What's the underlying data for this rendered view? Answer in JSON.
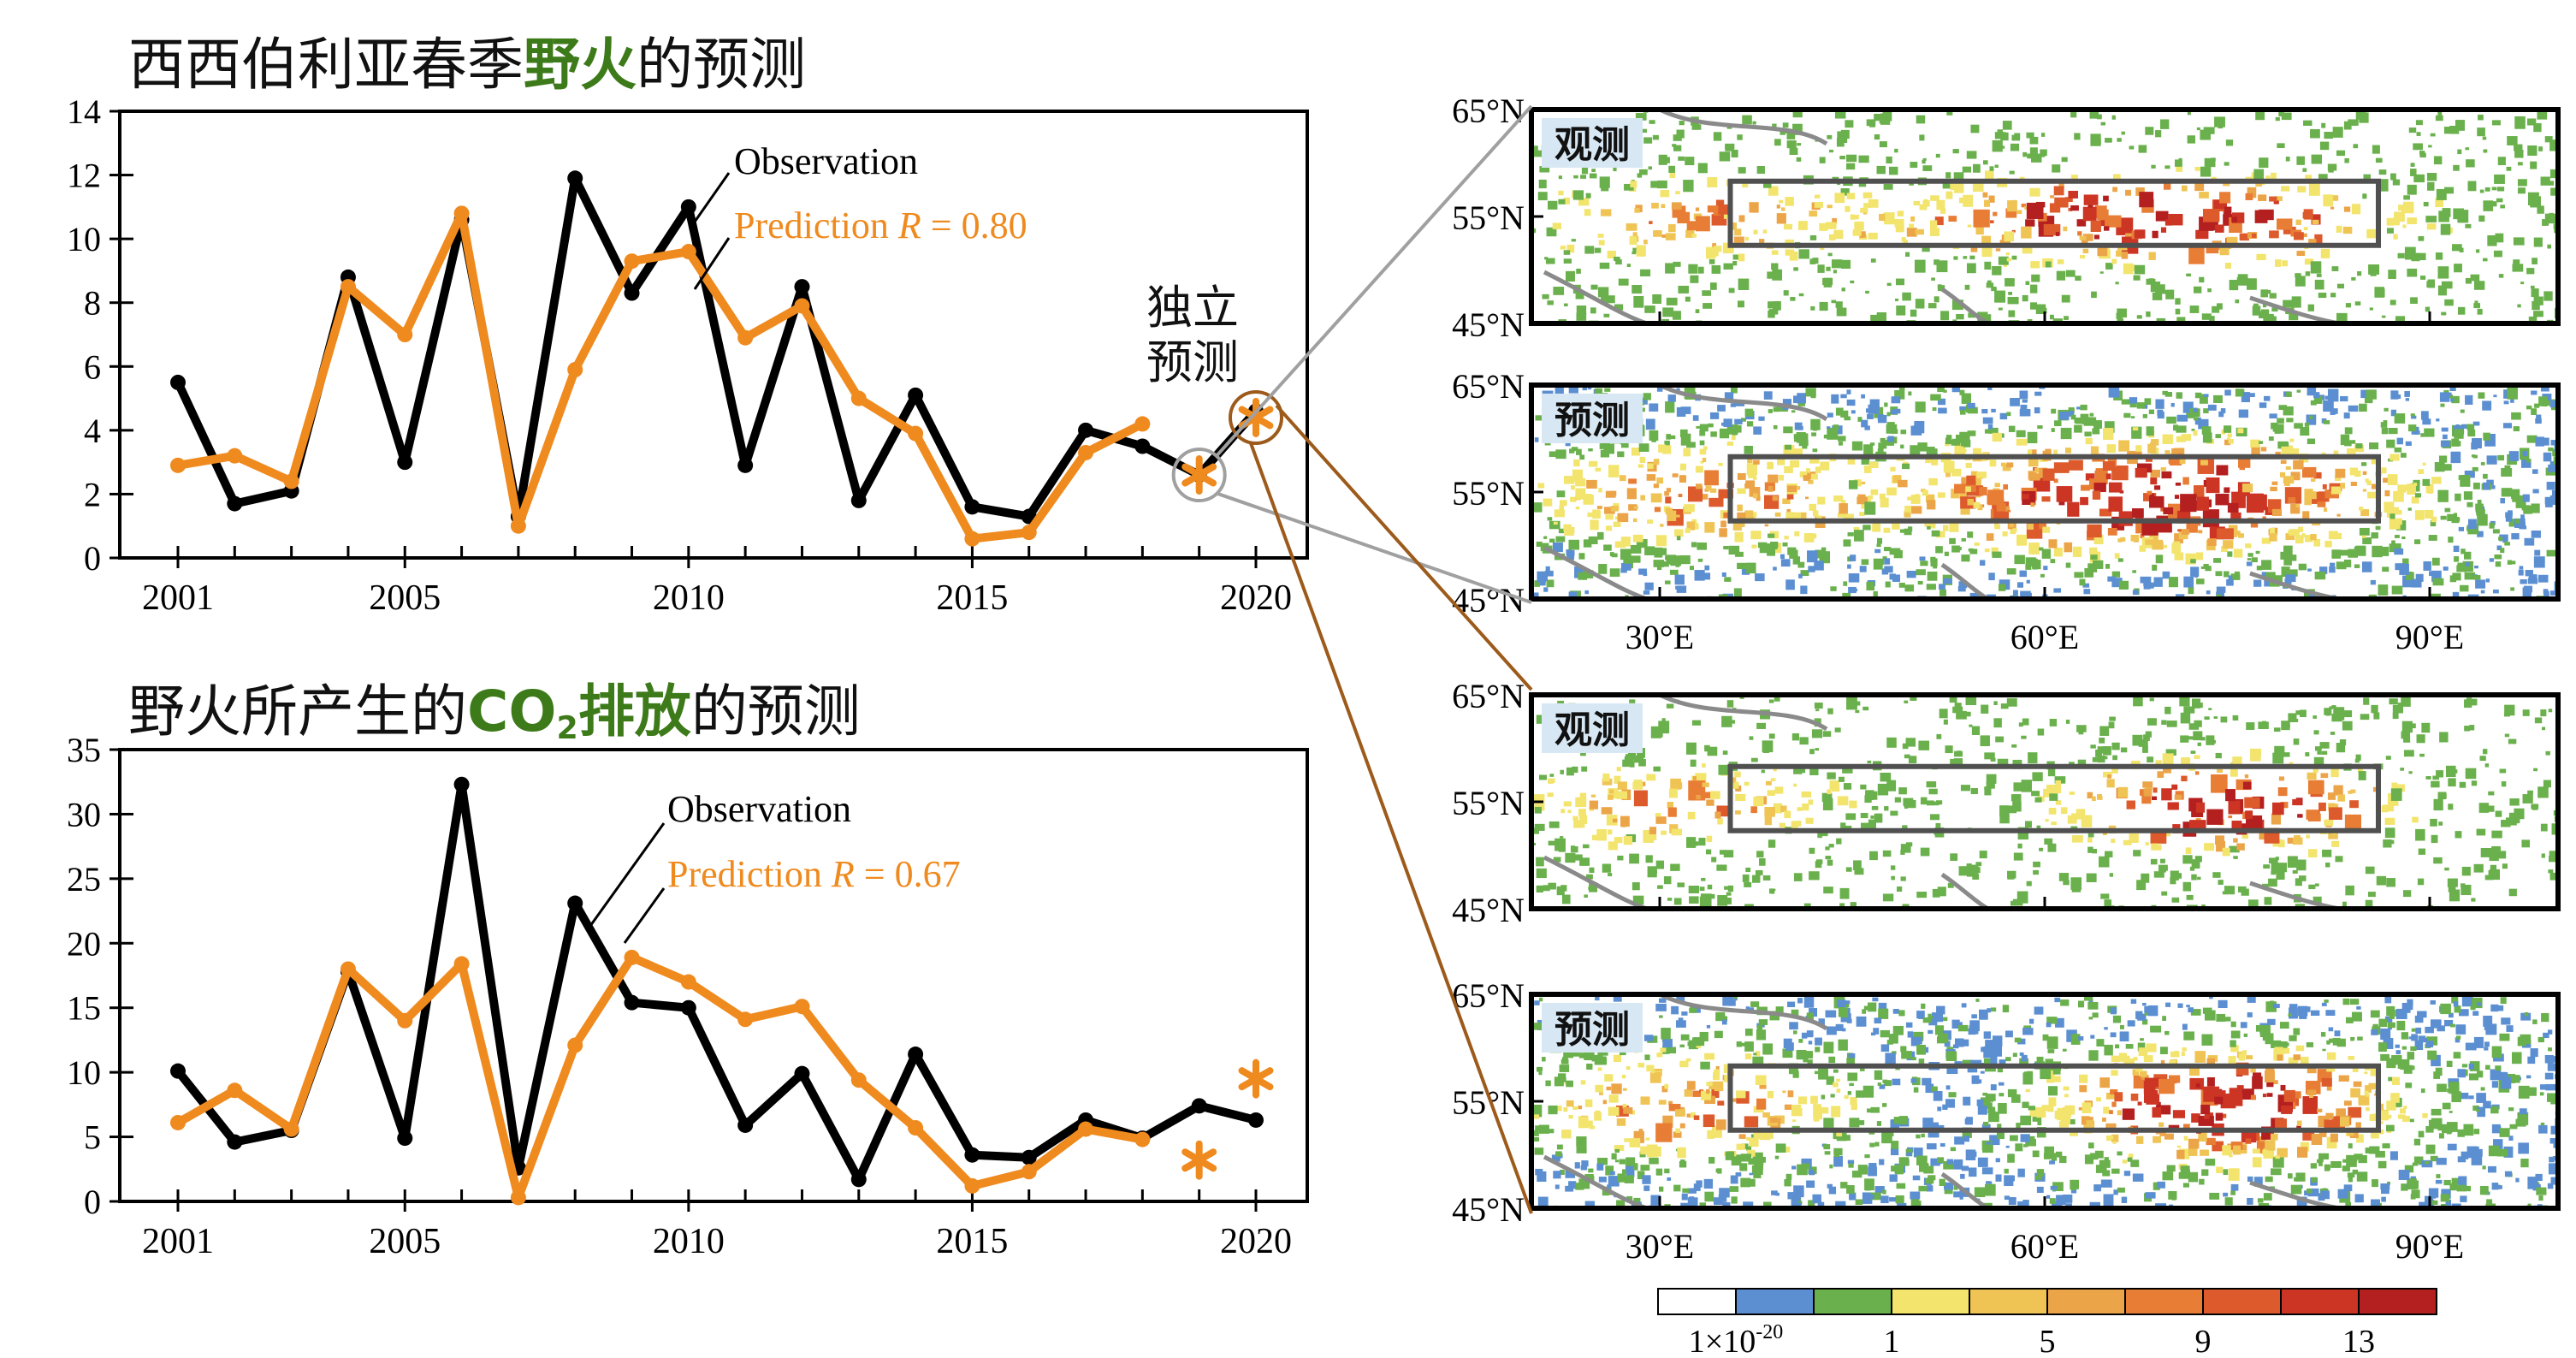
{
  "top_title": {
    "pre": "西西伯利亚春季",
    "highlight": "野火",
    "post": "的预测"
  },
  "bottom_title": {
    "pre": "野火所产生的",
    "highlight_a": "CO",
    "highlight_sub": "2",
    "highlight_b": "排放",
    "post": "的预测"
  },
  "colors": {
    "observation": "#000000",
    "prediction": "#ef8a1e",
    "highlight": "#3d7a19",
    "callout_gray": "#a0a0a0",
    "callout_brown": "#9c5a1b",
    "map_label_bg": "#d7e7f4"
  },
  "chart_data": [
    {
      "type": "line",
      "name": "fire",
      "x": [
        2001,
        2002,
        2003,
        2004,
        2005,
        2006,
        2007,
        2008,
        2009,
        2010,
        2011,
        2012,
        2013,
        2014,
        2015,
        2016,
        2017,
        2018,
        2019,
        2020
      ],
      "xticks": [
        2001,
        2005,
        2010,
        2015,
        2020
      ],
      "yticks": [
        0,
        2,
        4,
        6,
        8,
        10,
        12,
        14
      ],
      "ylim": [
        0,
        14
      ],
      "series": [
        {
          "name": "Observation",
          "values": [
            5.5,
            1.7,
            2.1,
            8.8,
            3.0,
            10.6,
            1.3,
            11.9,
            8.3,
            11.0,
            2.9,
            8.5,
            1.8,
            5.1,
            1.6,
            1.3,
            4.0,
            3.5,
            2.6,
            4.6
          ]
        },
        {
          "name": "Prediction R = 0.80",
          "values": [
            2.9,
            3.2,
            2.4,
            8.5,
            7.0,
            10.8,
            1.0,
            5.9,
            9.3,
            9.6,
            6.9,
            7.9,
            5.0,
            3.9,
            0.6,
            0.8,
            3.3,
            4.2,
            null,
            null
          ]
        }
      ],
      "independent_prediction": {
        "x": [
          2019,
          2020
        ],
        "values": [
          2.6,
          4.4
        ]
      },
      "annotations": {
        "observation": "Observation",
        "prediction_prefix": "Prediction ",
        "prediction_R": "R",
        "prediction_suffix": " = 0.80",
        "independent": [
          "独立",
          "预测"
        ]
      }
    },
    {
      "type": "line",
      "name": "co2",
      "x": [
        2001,
        2002,
        2003,
        2004,
        2005,
        2006,
        2007,
        2008,
        2009,
        2010,
        2011,
        2012,
        2013,
        2014,
        2015,
        2016,
        2017,
        2018,
        2019,
        2020
      ],
      "xticks": [
        2001,
        2005,
        2010,
        2015,
        2020
      ],
      "yticks": [
        0,
        5,
        10,
        15,
        20,
        25,
        30,
        35
      ],
      "ylim": [
        0,
        35
      ],
      "series": [
        {
          "name": "Observation",
          "values": [
            10.1,
            4.6,
            5.5,
            17.8,
            4.9,
            32.3,
            2.6,
            23.1,
            15.4,
            15.0,
            5.9,
            9.9,
            1.7,
            11.4,
            3.6,
            3.4,
            6.3,
            4.9,
            7.4,
            6.3
          ]
        },
        {
          "name": "Prediction R = 0.67",
          "values": [
            6.1,
            8.6,
            5.6,
            18.0,
            14.0,
            18.4,
            0.3,
            12.1,
            18.9,
            17.0,
            14.1,
            15.1,
            9.4,
            5.7,
            1.2,
            2.3,
            5.6,
            4.8,
            null,
            null
          ]
        }
      ],
      "independent_prediction": {
        "x": [
          2019,
          2020
        ],
        "values": [
          3.2,
          9.5
        ]
      },
      "annotations": {
        "observation": "Observation",
        "prediction_prefix": "Prediction ",
        "prediction_R": "R",
        "prediction_suffix": " = 0.67"
      }
    }
  ],
  "maps": {
    "panels": [
      {
        "label": "观测",
        "year": 2019
      },
      {
        "label": "预测",
        "year": 2019
      },
      {
        "label": "观测",
        "year": 2020
      },
      {
        "label": "预测",
        "year": 2020
      }
    ],
    "lat_labels": [
      "65°N",
      "55°N",
      "45°N"
    ],
    "lon_labels": [
      "30°E",
      "60°E",
      "90°E"
    ],
    "colorbar": {
      "colors": [
        "#ffffff",
        "#5b8fd1",
        "#6ab04c",
        "#f2e46c",
        "#efc455",
        "#eba447",
        "#e87d35",
        "#dc5a2b",
        "#cc3524",
        "#b41f1f"
      ],
      "labels": [
        {
          "base": "1×10",
          "sup": "-20"
        },
        {
          "base": "1",
          "sup": ""
        },
        {
          "base": "5",
          "sup": ""
        },
        {
          "base": "9",
          "sup": ""
        },
        {
          "base": "13",
          "sup": ""
        }
      ]
    }
  }
}
